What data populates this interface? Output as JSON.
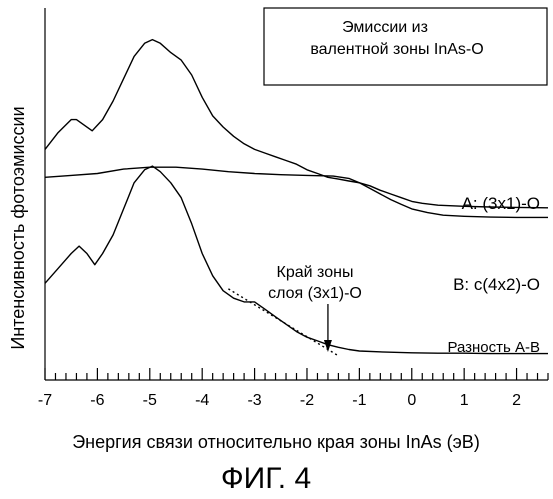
{
  "chart_data": {
    "type": "line",
    "legend_title_lines": [
      "Эмиссии из",
      "валентной зоны InAs-O"
    ],
    "legend_placement": "top-right",
    "xlabel": "Энергия связи относительно края зоны InAs (эВ)",
    "ylabel": "Интенсивность фотоэмиссии",
    "figure_caption": "ФИГ. 4",
    "xlim": [
      -7,
      2.6
    ],
    "x_ticks": [
      -7,
      -6,
      -5,
      -4,
      -3,
      -2,
      -1,
      0,
      1,
      2
    ],
    "grid": false,
    "y_units": "arbitrary (offset curves)",
    "series": [
      {
        "name": "A: (3x1)-O",
        "points": [
          [
            -7.0,
            0.38
          ],
          [
            -6.75,
            0.335
          ],
          [
            -6.5,
            0.3
          ],
          [
            -6.4,
            0.3
          ],
          [
            -6.25,
            0.315
          ],
          [
            -6.1,
            0.33
          ],
          [
            -5.9,
            0.3
          ],
          [
            -5.7,
            0.25
          ],
          [
            -5.5,
            0.19
          ],
          [
            -5.3,
            0.13
          ],
          [
            -5.1,
            0.095
          ],
          [
            -4.95,
            0.085
          ],
          [
            -4.8,
            0.095
          ],
          [
            -4.6,
            0.12
          ],
          [
            -4.4,
            0.14
          ],
          [
            -4.2,
            0.18
          ],
          [
            -4.0,
            0.24
          ],
          [
            -3.8,
            0.29
          ],
          [
            -3.6,
            0.32
          ],
          [
            -3.4,
            0.345
          ],
          [
            -3.2,
            0.365
          ],
          [
            -3.0,
            0.38
          ],
          [
            -2.8,
            0.39
          ],
          [
            -2.6,
            0.4
          ],
          [
            -2.4,
            0.41
          ],
          [
            -2.2,
            0.42
          ],
          [
            -2.0,
            0.435
          ],
          [
            -1.8,
            0.445
          ],
          [
            -1.6,
            0.455
          ],
          [
            -1.4,
            0.46
          ],
          [
            -1.2,
            0.465
          ],
          [
            -1.0,
            0.47
          ],
          [
            -0.8,
            0.478
          ],
          [
            -0.6,
            0.49
          ],
          [
            -0.4,
            0.5
          ],
          [
            -0.2,
            0.51
          ],
          [
            0.0,
            0.52
          ],
          [
            0.2,
            0.525
          ],
          [
            0.5,
            0.53
          ],
          [
            1.0,
            0.533
          ],
          [
            1.5,
            0.535
          ],
          [
            2.0,
            0.536
          ],
          [
            2.6,
            0.537
          ]
        ]
      },
      {
        "name": "B: c(4x2)-O",
        "points": [
          [
            -7.0,
            0.455
          ],
          [
            -6.5,
            0.45
          ],
          [
            -6.0,
            0.445
          ],
          [
            -5.5,
            0.433
          ],
          [
            -5.0,
            0.428
          ],
          [
            -4.5,
            0.428
          ],
          [
            -4.0,
            0.433
          ],
          [
            -3.5,
            0.44
          ],
          [
            -3.0,
            0.445
          ],
          [
            -2.5,
            0.448
          ],
          [
            -2.0,
            0.45
          ],
          [
            -1.5,
            0.452
          ],
          [
            -1.2,
            0.458
          ],
          [
            -1.0,
            0.47
          ],
          [
            -0.8,
            0.485
          ],
          [
            -0.6,
            0.5
          ],
          [
            -0.4,
            0.515
          ],
          [
            -0.2,
            0.528
          ],
          [
            0.0,
            0.54
          ],
          [
            0.3,
            0.55
          ],
          [
            0.6,
            0.557
          ],
          [
            1.0,
            0.56
          ],
          [
            1.5,
            0.562
          ],
          [
            2.0,
            0.563
          ],
          [
            2.6,
            0.563
          ]
        ]
      },
      {
        "name": "Разность A-B",
        "points": [
          [
            -7.0,
            0.74
          ],
          [
            -6.75,
            0.7
          ],
          [
            -6.5,
            0.66
          ],
          [
            -6.35,
            0.64
          ],
          [
            -6.2,
            0.66
          ],
          [
            -6.05,
            0.69
          ],
          [
            -5.9,
            0.66
          ],
          [
            -5.7,
            0.61
          ],
          [
            -5.5,
            0.54
          ],
          [
            -5.3,
            0.47
          ],
          [
            -5.1,
            0.435
          ],
          [
            -4.95,
            0.425
          ],
          [
            -4.8,
            0.44
          ],
          [
            -4.6,
            0.47
          ],
          [
            -4.4,
            0.51
          ],
          [
            -4.2,
            0.58
          ],
          [
            -4.0,
            0.66
          ],
          [
            -3.8,
            0.72
          ],
          [
            -3.6,
            0.76
          ],
          [
            -3.4,
            0.78
          ],
          [
            -3.2,
            0.79
          ],
          [
            -3.0,
            0.79
          ],
          [
            -2.8,
            0.81
          ],
          [
            -2.6,
            0.83
          ],
          [
            -2.4,
            0.85
          ],
          [
            -2.2,
            0.87
          ],
          [
            -2.0,
            0.885
          ],
          [
            -1.8,
            0.895
          ],
          [
            -1.6,
            0.905
          ],
          [
            -1.4,
            0.912
          ],
          [
            -1.2,
            0.918
          ],
          [
            -1.0,
            0.922
          ],
          [
            -0.5,
            0.925
          ],
          [
            0.0,
            0.927
          ],
          [
            0.5,
            0.928
          ],
          [
            1.0,
            0.928
          ],
          [
            1.5,
            0.929
          ],
          [
            2.0,
            0.929
          ],
          [
            2.6,
            0.929
          ]
        ]
      }
    ],
    "annotations": [
      {
        "lines": [
          "Край зоны",
          "слоя (3x1)-O"
        ],
        "arrow_at_x": -1.6
      }
    ],
    "extrapolation_line": {
      "from": [
        -3.5,
        0.755
      ],
      "to": [
        -1.4,
        0.935
      ]
    }
  }
}
